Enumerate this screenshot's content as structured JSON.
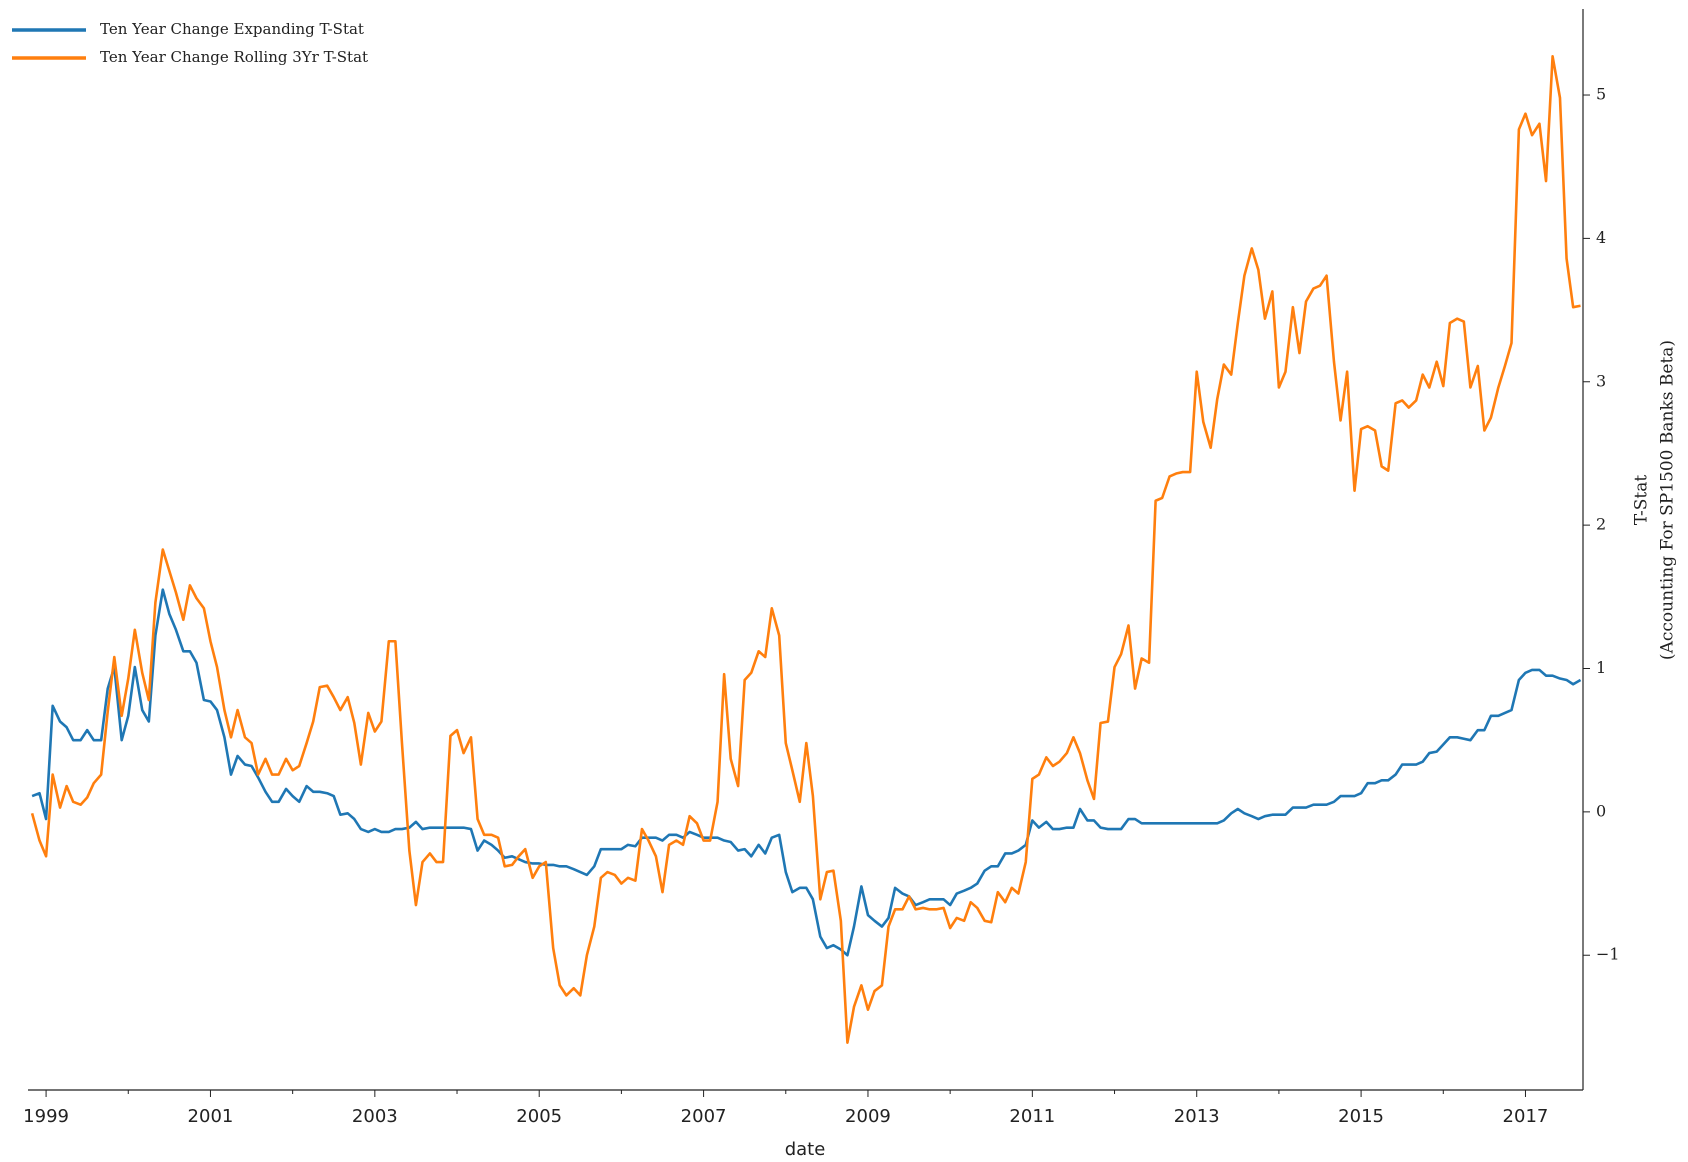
{
  "chart_data": {
    "type": "line",
    "xlabel": "date",
    "ylabel": [
      "T-Stat",
      "(Accounting For SP1500 Banks Beta)"
    ],
    "yaxis_side": "right",
    "legend": "upper left",
    "grid": false,
    "xlim": [
      1998.78,
      2017.7
    ],
    "xticks": [
      1999,
      2001,
      2003,
      2005,
      2007,
      2009,
      2011,
      2013,
      2015,
      2017
    ],
    "xminor": [
      2000,
      2002,
      2004,
      2006,
      2008,
      2010,
      2012,
      2014,
      2016
    ],
    "ylim": [
      -1.94,
      5.6
    ],
    "yticks": [
      {
        "value": -1,
        "label": "−1"
      },
      0,
      1,
      2,
      3,
      4,
      5
    ],
    "x": [
      1998.83,
      1998.92,
      1999.0,
      1999.08,
      1999.17,
      1999.25,
      1999.33,
      1999.42,
      1999.5,
      1999.58,
      1999.67,
      1999.75,
      1999.83,
      1999.92,
      2000.0,
      2000.08,
      2000.17,
      2000.25,
      2000.33,
      2000.42,
      2000.5,
      2000.58,
      2000.67,
      2000.75,
      2000.83,
      2000.92,
      2001.0,
      2001.08,
      2001.17,
      2001.25,
      2001.33,
      2001.42,
      2001.5,
      2001.58,
      2001.67,
      2001.75,
      2001.83,
      2001.92,
      2002.0,
      2002.08,
      2002.17,
      2002.25,
      2002.33,
      2002.42,
      2002.5,
      2002.58,
      2002.67,
      2002.75,
      2002.83,
      2002.92,
      2003.0,
      2003.08,
      2003.17,
      2003.25,
      2003.33,
      2003.42,
      2003.5,
      2003.58,
      2003.67,
      2003.75,
      2003.83,
      2003.92,
      2004.0,
      2004.08,
      2004.17,
      2004.25,
      2004.33,
      2004.42,
      2004.5,
      2004.58,
      2004.67,
      2004.75,
      2004.83,
      2004.92,
      2005.0,
      2005.08,
      2005.17,
      2005.25,
      2005.33,
      2005.42,
      2005.5,
      2005.58,
      2005.67,
      2005.75,
      2005.83,
      2005.92,
      2006.0,
      2006.08,
      2006.17,
      2006.25,
      2006.33,
      2006.42,
      2006.5,
      2006.58,
      2006.67,
      2006.75,
      2006.83,
      2006.92,
      2007.0,
      2007.08,
      2007.17,
      2007.25,
      2007.33,
      2007.42,
      2007.5,
      2007.58,
      2007.67,
      2007.75,
      2007.83,
      2007.92,
      2008.0,
      2008.08,
      2008.17,
      2008.25,
      2008.33,
      2008.42,
      2008.5,
      2008.58,
      2008.67,
      2008.75,
      2008.83,
      2008.92,
      2009.0,
      2009.08,
      2009.17,
      2009.25,
      2009.33,
      2009.42,
      2009.5,
      2009.58,
      2009.67,
      2009.75,
      2009.83,
      2009.92,
      2010.0,
      2010.08,
      2010.17,
      2010.25,
      2010.33,
      2010.42,
      2010.5,
      2010.58,
      2010.67,
      2010.75,
      2010.83,
      2010.92,
      2011.0,
      2011.08,
      2011.17,
      2011.25,
      2011.33,
      2011.42,
      2011.5,
      2011.58,
      2011.67,
      2011.75,
      2011.83,
      2011.92,
      2012.0,
      2012.08,
      2012.17,
      2012.25,
      2012.33,
      2012.42,
      2012.5,
      2012.58,
      2012.67,
      2012.75,
      2012.83,
      2012.92,
      2013.0,
      2013.08,
      2013.17,
      2013.25,
      2013.33,
      2013.42,
      2013.5,
      2013.58,
      2013.67,
      2013.75,
      2013.83,
      2013.92,
      2014.0,
      2014.08,
      2014.17,
      2014.25,
      2014.33,
      2014.42,
      2014.5,
      2014.58,
      2014.67,
      2014.75,
      2014.83,
      2014.92,
      2015.0,
      2015.08,
      2015.17,
      2015.25,
      2015.33,
      2015.42,
      2015.5,
      2015.58,
      2015.67,
      2015.75,
      2015.83,
      2015.92,
      2016.0,
      2016.08,
      2016.17,
      2016.25,
      2016.33,
      2016.42,
      2016.5,
      2016.58,
      2016.67,
      2016.75,
      2016.83,
      2016.92,
      2017.0,
      2017.08,
      2017.17,
      2017.25,
      2017.33,
      2017.42,
      2017.5,
      2017.58,
      2017.67
    ],
    "series": [
      {
        "name": "Ten Year Change Expanding T-Stat",
        "color": "#1f77b4",
        "values": [
          0.11,
          0.13,
          -0.05,
          0.74,
          0.63,
          0.59,
          0.5,
          0.5,
          0.57,
          0.5,
          0.5,
          0.86,
          1.01,
          0.5,
          0.67,
          1.01,
          0.71,
          0.63,
          1.23,
          1.55,
          1.38,
          1.27,
          1.12,
          1.12,
          1.04,
          0.78,
          0.77,
          0.71,
          0.52,
          0.26,
          0.39,
          0.33,
          0.32,
          0.24,
          0.14,
          0.07,
          0.07,
          0.16,
          0.11,
          0.07,
          0.18,
          0.14,
          0.14,
          0.13,
          0.11,
          -0.02,
          -0.01,
          -0.05,
          -0.12,
          -0.14,
          -0.12,
          -0.14,
          -0.14,
          -0.12,
          -0.12,
          -0.11,
          -0.07,
          -0.12,
          -0.11,
          -0.11,
          -0.11,
          -0.11,
          -0.11,
          -0.11,
          -0.12,
          -0.27,
          -0.2,
          -0.23,
          -0.27,
          -0.32,
          -0.31,
          -0.33,
          -0.35,
          -0.36,
          -0.36,
          -0.37,
          -0.37,
          -0.38,
          -0.38,
          -0.4,
          -0.42,
          -0.44,
          -0.38,
          -0.26,
          -0.26,
          -0.26,
          -0.26,
          -0.23,
          -0.24,
          -0.18,
          -0.18,
          -0.18,
          -0.2,
          -0.16,
          -0.16,
          -0.18,
          -0.14,
          -0.16,
          -0.18,
          -0.18,
          -0.18,
          -0.2,
          -0.21,
          -0.27,
          -0.26,
          -0.31,
          -0.23,
          -0.29,
          -0.18,
          -0.16,
          -0.42,
          -0.56,
          -0.53,
          -0.53,
          -0.61,
          -0.87,
          -0.95,
          -0.93,
          -0.96,
          -1.0,
          -0.8,
          -0.52,
          -0.72,
          -0.76,
          -0.8,
          -0.74,
          -0.53,
          -0.57,
          -0.59,
          -0.65,
          -0.63,
          -0.61,
          -0.61,
          -0.61,
          -0.65,
          -0.57,
          -0.55,
          -0.53,
          -0.5,
          -0.41,
          -0.38,
          -0.38,
          -0.29,
          -0.29,
          -0.27,
          -0.23,
          -0.06,
          -0.11,
          -0.07,
          -0.12,
          -0.12,
          -0.11,
          -0.11,
          0.02,
          -0.06,
          -0.06,
          -0.11,
          -0.12,
          -0.12,
          -0.12,
          -0.05,
          -0.05,
          -0.08,
          -0.08,
          -0.08,
          -0.08,
          -0.08,
          -0.08,
          -0.08,
          -0.08,
          -0.08,
          -0.08,
          -0.08,
          -0.08,
          -0.06,
          -0.01,
          0.02,
          -0.01,
          -0.03,
          -0.05,
          -0.03,
          -0.02,
          -0.02,
          -0.02,
          0.03,
          0.03,
          0.03,
          0.05,
          0.05,
          0.05,
          0.07,
          0.11,
          0.11,
          0.11,
          0.13,
          0.2,
          0.2,
          0.22,
          0.22,
          0.26,
          0.33,
          0.33,
          0.33,
          0.35,
          0.41,
          0.42,
          0.47,
          0.52,
          0.52,
          0.51,
          0.5,
          0.57,
          0.57,
          0.67,
          0.67,
          0.69,
          0.71,
          0.92,
          0.97,
          0.99,
          0.99,
          0.95,
          0.95,
          0.93,
          0.92,
          0.89,
          0.92
        ]
      },
      {
        "name": "Ten Year Change Rolling 3Yr T-Stat",
        "color": "#ff7f0e",
        "values": [
          -0.01,
          -0.2,
          -0.31,
          0.26,
          0.03,
          0.18,
          0.07,
          0.05,
          0.1,
          0.2,
          0.26,
          0.7,
          1.08,
          0.67,
          0.93,
          1.27,
          0.97,
          0.78,
          1.46,
          1.83,
          1.68,
          1.53,
          1.34,
          1.58,
          1.49,
          1.42,
          1.19,
          1.01,
          0.71,
          0.52,
          0.71,
          0.52,
          0.48,
          0.26,
          0.37,
          0.26,
          0.26,
          0.37,
          0.29,
          0.32,
          0.48,
          0.63,
          0.87,
          0.88,
          0.8,
          0.71,
          0.8,
          0.62,
          0.33,
          0.69,
          0.56,
          0.63,
          1.19,
          1.19,
          0.48,
          -0.27,
          -0.65,
          -0.35,
          -0.29,
          -0.35,
          -0.35,
          0.53,
          0.57,
          0.41,
          0.52,
          -0.05,
          -0.16,
          -0.16,
          -0.18,
          -0.38,
          -0.37,
          -0.31,
          -0.26,
          -0.46,
          -0.38,
          -0.35,
          -0.95,
          -1.21,
          -1.28,
          -1.23,
          -1.28,
          -1.0,
          -0.8,
          -0.46,
          -0.42,
          -0.44,
          -0.5,
          -0.46,
          -0.48,
          -0.12,
          -0.2,
          -0.31,
          -0.56,
          -0.23,
          -0.2,
          -0.23,
          -0.03,
          -0.08,
          -0.2,
          -0.2,
          0.07,
          0.96,
          0.37,
          0.18,
          0.92,
          0.97,
          1.12,
          1.08,
          1.42,
          1.23,
          0.48,
          0.29,
          0.07,
          0.48,
          0.11,
          -0.61,
          -0.42,
          -0.41,
          -0.76,
          -1.61,
          -1.36,
          -1.21,
          -1.38,
          -1.25,
          -1.21,
          -0.8,
          -0.68,
          -0.68,
          -0.59,
          -0.68,
          -0.67,
          -0.68,
          -0.68,
          -0.67,
          -0.81,
          -0.74,
          -0.76,
          -0.63,
          -0.67,
          -0.76,
          -0.77,
          -0.56,
          -0.63,
          -0.53,
          -0.57,
          -0.35,
          0.23,
          0.26,
          0.38,
          0.32,
          0.35,
          0.41,
          0.52,
          0.41,
          0.22,
          0.09,
          0.62,
          0.63,
          1.01,
          1.1,
          1.3,
          0.86,
          1.07,
          1.04,
          2.17,
          2.19,
          2.34,
          2.36,
          2.37,
          2.37,
          3.07,
          2.72,
          2.54,
          2.88,
          3.12,
          3.05,
          3.41,
          3.74,
          3.93,
          3.78,
          3.44,
          3.63,
          2.96,
          3.07,
          3.52,
          3.2,
          3.56,
          3.65,
          3.67,
          3.74,
          3.14,
          2.73,
          3.07,
          2.24,
          2.67,
          2.69,
          2.66,
          2.41,
          2.38,
          2.85,
          2.87,
          2.82,
          2.87,
          3.05,
          2.96,
          3.14,
          2.97,
          3.41,
          3.44,
          3.42,
          2.96,
          3.11,
          2.66,
          2.75,
          2.96,
          3.11,
          3.27,
          4.76,
          4.87,
          4.72,
          4.8,
          4.4,
          5.27,
          4.98,
          3.86,
          3.52,
          3.53
        ]
      }
    ]
  }
}
